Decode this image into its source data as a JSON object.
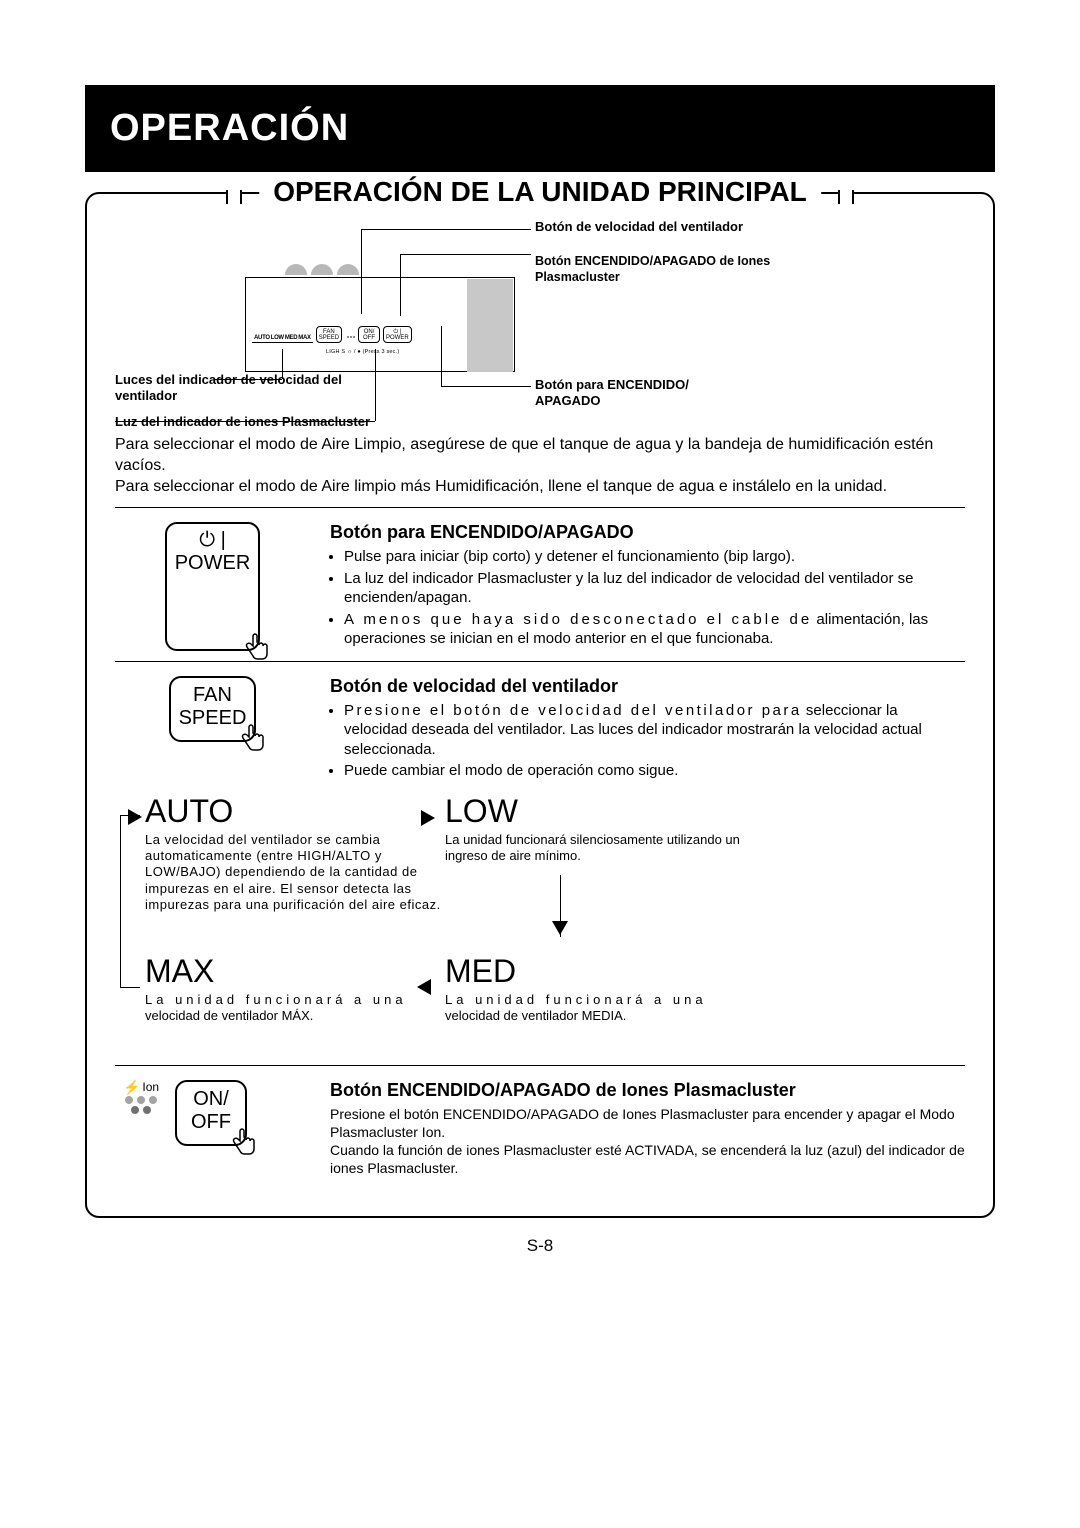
{
  "header": {
    "title": "OPERACIÓN"
  },
  "main_box": {
    "title": "OPERACIÓN DE LA UNIDAD PRINCIPAL"
  },
  "panel": {
    "speed_labels": [
      "AUTO",
      "LOW",
      "MED",
      "MAX"
    ],
    "btn_fan": {
      "top": "FAN",
      "bottom": "SPEED"
    },
    "btn_ion": {
      "top": "ON/",
      "bottom": "OFF"
    },
    "btn_power": {
      "top": "⏻ |",
      "bottom": "POWER"
    },
    "sub_text": "LIGH   S ☼ / ● (Press 3 sec.)"
  },
  "callouts": {
    "right": [
      "Botón de velocidad del ventilador",
      "Botón ENCENDIDO/APAGADO de Iones Plasmacluster",
      "Botón para ENCENDIDO/ APAGADO"
    ],
    "left": [
      "Luces del indicador de velocidad del ventilador",
      "Luz del indicador de iones Plasmacluster"
    ]
  },
  "intro": {
    "line1": "Para seleccionar el modo de Aire Limpio, asegúrese de que el tanque de agua y la bandeja de humidificación estén vacíos.",
    "line2": "Para seleccionar el modo de Aire limpio más Humidificación, llene el tanque de agua e instálelo en la unidad."
  },
  "power_btn": {
    "heading": "Botón para ENCENDIDO/APAGADO",
    "btn_top": "⏻ |",
    "btn_bottom": "POWER",
    "bullets": [
      "Pulse para iniciar (bip corto) y detener el funcionamiento (bip largo).",
      "La luz del indicador Plasmacluster y la luz del indicador de velocidad del ventilador se encienden/apagan.",
      "A menos que haya sido desconectado el cable de alimentación, las operaciones se inician en el modo anterior en el que funcionaba."
    ],
    "bullet_spacing": [
      0,
      0,
      3
    ]
  },
  "fan_btn": {
    "heading": "Botón de velocidad del ventilador",
    "btn_top": "FAN",
    "btn_bottom": "SPEED",
    "bullets": [
      "Presione el botón de velocidad del ventilador para seleccionar la velocidad deseada del ventilador. Las luces del indicador mostrarán la velocidad actual seleccionada.",
      "Puede cambiar el modo de operación como sigue."
    ],
    "bullet_spacing": [
      2,
      0
    ]
  },
  "modes": {
    "auto": {
      "title": "AUTO",
      "desc": "La velocidad del ventilador se cambia automaticamente (entre HIGH/ALTO y LOW/BAJO) dependiendo de la cantidad de impurezas en el aire. El sensor detecta las impurezas para una purificación del aire eficaz.",
      "letter_spacing": 1
    },
    "low": {
      "title": "LOW",
      "desc": "La unidad funcionará silenciosamente utilizando un ingreso de aire mínimo.",
      "letter_spacing": 0
    },
    "max": {
      "title": "MAX",
      "desc": "La unidad funcionará a una velocidad de ventilador MÁX.",
      "letter_spacing": 5
    },
    "med": {
      "title": "MED",
      "desc": "La unidad funcionará a una velocidad de ventilador MEDIA.",
      "letter_spacing": 5
    }
  },
  "ion_btn": {
    "heading": "Botón ENCENDIDO/APAGADO de Iones Plasmacluster",
    "label_top": "Ion",
    "btn_top": "ON/",
    "btn_bottom": "OFF",
    "desc": "Presione el botón ENCENDIDO/APAGADO de Iones Plasmacluster para encender y apagar el Modo Plasmacluster Ion.\nCuando la función de iones Plasmacluster esté ACTIVADA, se encenderá la luz (azul) del indicador de iones Plasmacluster.",
    "dot_colors": [
      "#a3a3a3",
      "#a3a3a3",
      "#a3a3a3",
      "#707070",
      "#707070"
    ]
  },
  "page_number": "S-8"
}
